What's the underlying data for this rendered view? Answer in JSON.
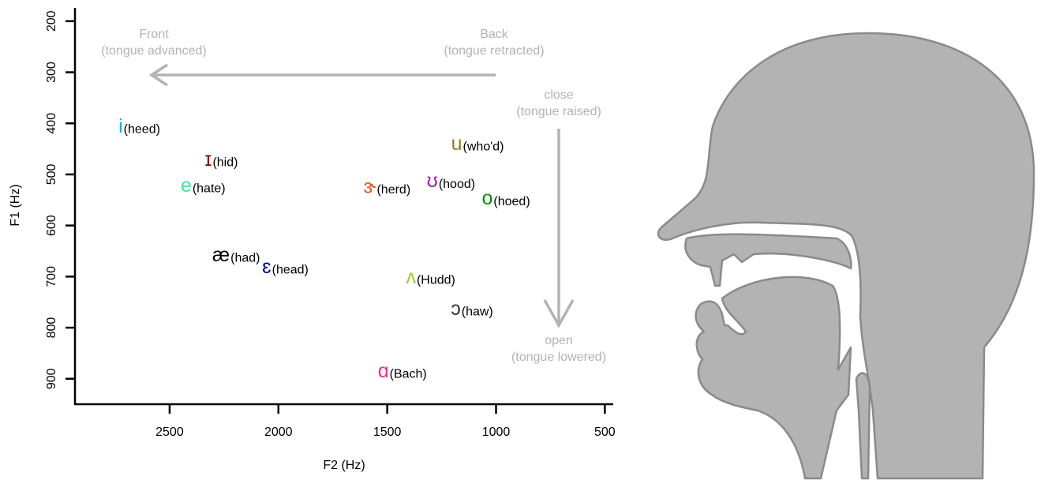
{
  "chart_data": {
    "type": "scatter",
    "xlabel": "F2 (Hz)",
    "ylabel": "F1 (Hz)",
    "xlim": [
      2935,
      465
    ],
    "ylim": [
      939,
      174
    ],
    "xticks": [
      2500,
      2000,
      1500,
      1000,
      500
    ],
    "yticks": [
      200,
      300,
      400,
      500,
      600,
      700,
      800,
      900
    ],
    "symbols": [
      "i",
      "ɪ",
      "e",
      "æ",
      "ɛ",
      "ɝ",
      "ʊ",
      "u",
      "o",
      "ʌ",
      "ɔ",
      "ɑ"
    ],
    "words": [
      "(heed)",
      "(hid)",
      "(hate)",
      "(had)",
      "(head)",
      "(herd)",
      "(hood)",
      "(who'd)",
      "(hoed)",
      "(Hudd)",
      "(haw)",
      "(Bach)"
    ],
    "colors": [
      "#2ba4d8",
      "#8b0000",
      "#3ee89a",
      "#000000",
      "#00008b",
      "#e2541a",
      "#9b1fa8",
      "#9a7a1a",
      "#0a8a0a",
      "#9acd32",
      "#333333",
      "#e8338a"
    ],
    "x": [
      2725,
      2322,
      2424,
      2264,
      2054,
      1580,
      1293,
      1181,
      1040,
      1391,
      1185,
      1518
    ],
    "values": [
      411,
      476,
      527,
      663,
      686,
      529,
      518,
      445,
      552,
      706,
      768,
      890
    ],
    "annotations": {
      "front": "Front",
      "front_note": "(tongue advanced)",
      "back": "Back",
      "back_note": "(tongue retracted)",
      "close": "close",
      "close_note": "(tongue raised)",
      "open": "open",
      "open_note": "(tongue lowered)"
    }
  }
}
